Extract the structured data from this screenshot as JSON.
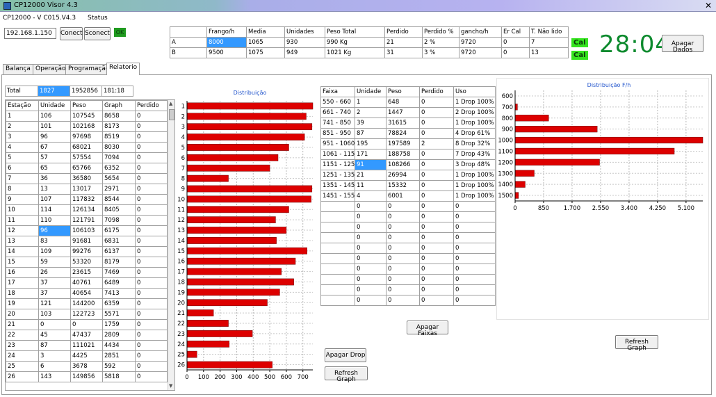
{
  "window": {
    "title": "CP12000 Visor 4.3",
    "close_glyph": "✕"
  },
  "header": {
    "version": "CP12000 - V C015.V4.3",
    "status_label": "Status",
    "ip_value": "192.168.1.150",
    "connect_label": "Conect",
    "disconnect_label": "Sconect",
    "ok_label": "OK"
  },
  "summary": {
    "headers": [
      "",
      "Frango/h",
      "Media",
      "Unidades",
      "Peso Total",
      "Perdido",
      "Perdido %",
      "gancho/h",
      "Er Cal",
      "T. Não lido"
    ],
    "rows": [
      [
        "A",
        "8000",
        "1065",
        "930",
        "990 Kg",
        "21",
        "2 %",
        "9720",
        "0",
        "7"
      ],
      [
        "B",
        "9500",
        "1075",
        "949",
        "1021 Kg",
        "31",
        "3 %",
        "9720",
        "0",
        "13"
      ]
    ]
  },
  "cal": {
    "a": "Cal",
    "b": "Cal"
  },
  "clock": "28:04",
  "apagar_dados_label": "Apagar Dados",
  "tabs": [
    "Balança",
    "Operação",
    "Programação",
    "Relatorio"
  ],
  "total": {
    "label": "Total",
    "unidade": "1827",
    "peso": "1952856",
    "graph": "181:18"
  },
  "stations": {
    "headers": [
      "Estação",
      "Unidade",
      "Peso",
      "Graph",
      "Perdido"
    ],
    "rows": [
      [
        "1",
        "106",
        "107545",
        "8658",
        "0"
      ],
      [
        "2",
        "101",
        "102168",
        "8173",
        "0"
      ],
      [
        "3",
        "96",
        "97698",
        "8519",
        "0"
      ],
      [
        "4",
        "67",
        "68021",
        "8030",
        "0"
      ],
      [
        "5",
        "57",
        "57554",
        "7094",
        "0"
      ],
      [
        "6",
        "65",
        "65766",
        "6352",
        "0"
      ],
      [
        "7",
        "36",
        "36580",
        "5654",
        "0"
      ],
      [
        "8",
        "13",
        "13017",
        "2971",
        "0"
      ],
      [
        "9",
        "107",
        "117832",
        "8544",
        "0"
      ],
      [
        "10",
        "114",
        "126134",
        "8405",
        "0"
      ],
      [
        "11",
        "110",
        "121791",
        "7098",
        "0"
      ],
      [
        "12",
        "96",
        "106103",
        "6175",
        "0"
      ],
      [
        "13",
        "83",
        "91681",
        "6831",
        "0"
      ],
      [
        "14",
        "109",
        "99276",
        "6137",
        "0"
      ],
      [
        "15",
        "59",
        "53320",
        "8179",
        "0"
      ],
      [
        "16",
        "26",
        "23615",
        "7469",
        "0"
      ],
      [
        "17",
        "37",
        "40761",
        "6489",
        "0"
      ],
      [
        "18",
        "37",
        "40654",
        "7413",
        "0"
      ],
      [
        "19",
        "121",
        "144200",
        "6359",
        "0"
      ],
      [
        "20",
        "103",
        "122723",
        "5571",
        "0"
      ],
      [
        "21",
        "0",
        "0",
        "1759",
        "0"
      ],
      [
        "22",
        "45",
        "47437",
        "2809",
        "0"
      ],
      [
        "23",
        "87",
        "111021",
        "4434",
        "0"
      ],
      [
        "24",
        "3",
        "4425",
        "2851",
        "0"
      ],
      [
        "25",
        "6",
        "3678",
        "592",
        "0"
      ],
      [
        "26",
        "143",
        "149856",
        "5818",
        "0"
      ]
    ]
  },
  "faixas": {
    "headers": [
      "Faixa",
      "Unidade",
      "Peso",
      "Perdido",
      "Uso"
    ],
    "rows": [
      [
        "550 - 660",
        "1",
        "648",
        "0",
        "1 Drop 100%"
      ],
      [
        "661 - 740",
        "2",
        "1447",
        "0",
        "2 Drop 100%"
      ],
      [
        "741 - 850",
        "39",
        "31615",
        "0",
        "1 Drop 100%"
      ],
      [
        "851 - 950",
        "87",
        "78824",
        "0",
        "4 Drop 61%"
      ],
      [
        "951 - 1060",
        "195",
        "197589",
        "2",
        "8 Drop 32%"
      ],
      [
        "1061 - 1150",
        "171",
        "188758",
        "0",
        "7 Drop 43%"
      ],
      [
        "1151 - 1250",
        "91",
        "108266",
        "0",
        "3 Drop 48%"
      ],
      [
        "1251 - 1350",
        "21",
        "26994",
        "0",
        "1 Drop 100%"
      ],
      [
        "1351 - 1450",
        "11",
        "15332",
        "0",
        "1 Drop 100%"
      ],
      [
        "1451 - 1550",
        "4",
        "6001",
        "0",
        "1 Drop 100%"
      ],
      [
        "",
        "0",
        "0",
        "0",
        "0"
      ],
      [
        "",
        "0",
        "0",
        "0",
        "0"
      ],
      [
        "",
        "0",
        "0",
        "0",
        "0"
      ],
      [
        "",
        "0",
        "0",
        "0",
        "0"
      ],
      [
        "",
        "0",
        "0",
        "0",
        "0"
      ],
      [
        "",
        "0",
        "0",
        "0",
        "0"
      ],
      [
        "",
        "0",
        "0",
        "0",
        "0"
      ],
      [
        "",
        "0",
        "0",
        "0",
        "0"
      ],
      [
        "",
        "0",
        "0",
        "0",
        "0"
      ],
      [
        "",
        "0",
        "0",
        "0",
        "0"
      ]
    ]
  },
  "buttons": {
    "apagar_faixas": "Apagar Faixas",
    "apagar_drop": "Apagar Drop",
    "refresh_graph_1": "Refresh Graph",
    "refresh_graph_2": "Refresh Graph"
  },
  "chart_data": [
    {
      "type": "bar",
      "orientation": "horizontal",
      "title": "Distribuição",
      "categories": [
        "1",
        "2",
        "3",
        "4",
        "5",
        "6",
        "7",
        "8",
        "9",
        "10",
        "11",
        "12",
        "13",
        "14",
        "15",
        "16",
        "17",
        "18",
        "19",
        "20",
        "21",
        "22",
        "23",
        "24",
        "25",
        "26"
      ],
      "values": [
        760,
        720,
        755,
        710,
        615,
        550,
        500,
        250,
        755,
        750,
        615,
        535,
        600,
        540,
        725,
        655,
        570,
        645,
        560,
        485,
        160,
        250,
        395,
        255,
        60,
        515
      ],
      "xlim": [
        0,
        760
      ],
      "xticks": [
        0,
        100,
        200,
        300,
        400,
        500,
        600,
        700
      ],
      "bar_color": "#dd0000"
    },
    {
      "type": "bar",
      "orientation": "horizontal",
      "title": "Distribuição F/h",
      "categories": [
        "600",
        "700",
        "800",
        "900",
        "1000",
        "1100",
        "1200",
        "1300",
        "1400",
        "1500"
      ],
      "values": [
        0,
        70,
        1000,
        2450,
        5600,
        4750,
        2520,
        570,
        300,
        100
      ],
      "xlim": [
        0,
        5600
      ],
      "xticks": [
        "0",
        "850",
        "1.700",
        "2.550",
        "3.400",
        "4.250",
        "5.100"
      ],
      "bar_color": "#dd0000"
    }
  ]
}
